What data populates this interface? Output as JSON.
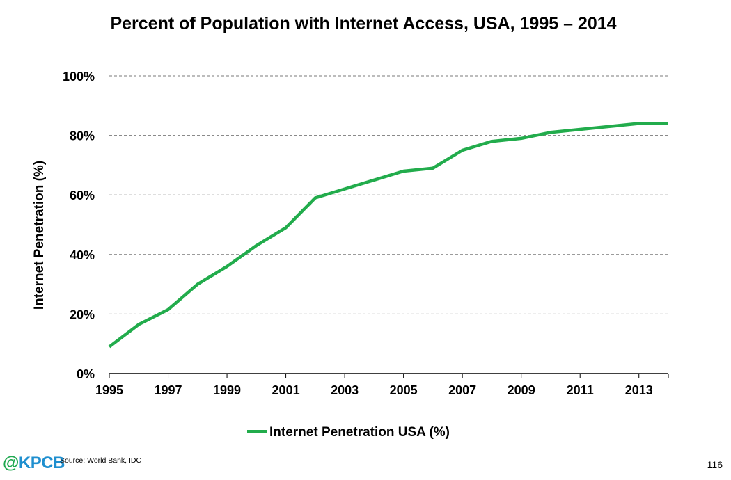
{
  "chart_data": {
    "type": "line",
    "title": "Percent of Population with Internet Access, USA, 1995 – 2014",
    "xlabel": "",
    "ylabel": "Internet Penetration (%)",
    "x": [
      1995,
      1996,
      1997,
      1998,
      1999,
      2000,
      2001,
      2002,
      2003,
      2004,
      2005,
      2006,
      2007,
      2008,
      2009,
      2010,
      2011,
      2012,
      2013,
      2014
    ],
    "series": [
      {
        "name": "Internet Penetration USA (%)",
        "values": [
          9,
          16.5,
          21.5,
          30,
          36,
          43,
          49,
          59,
          62,
          65,
          68,
          69,
          75,
          78,
          79,
          81,
          82,
          83,
          84,
          84
        ],
        "color": "#22ac4c"
      }
    ],
    "xlim": [
      1995,
      2014
    ],
    "ylim": [
      0,
      100
    ],
    "x_ticks": [
      "1995",
      "1997",
      "1999",
      "2001",
      "2003",
      "2005",
      "2007",
      "2009",
      "2011",
      "2013"
    ],
    "y_ticks": [
      "0%",
      "20%",
      "40%",
      "60%",
      "80%",
      "100%"
    ],
    "grid": true,
    "legend_position": "bottom-center"
  },
  "footer": {
    "brand_at": "@",
    "brand_name": "KPCB",
    "brand_at_color": "#1fa84f",
    "brand_name_color": "#1f8fcf",
    "source": "Source: World Bank, IDC",
    "page_number": "116"
  }
}
